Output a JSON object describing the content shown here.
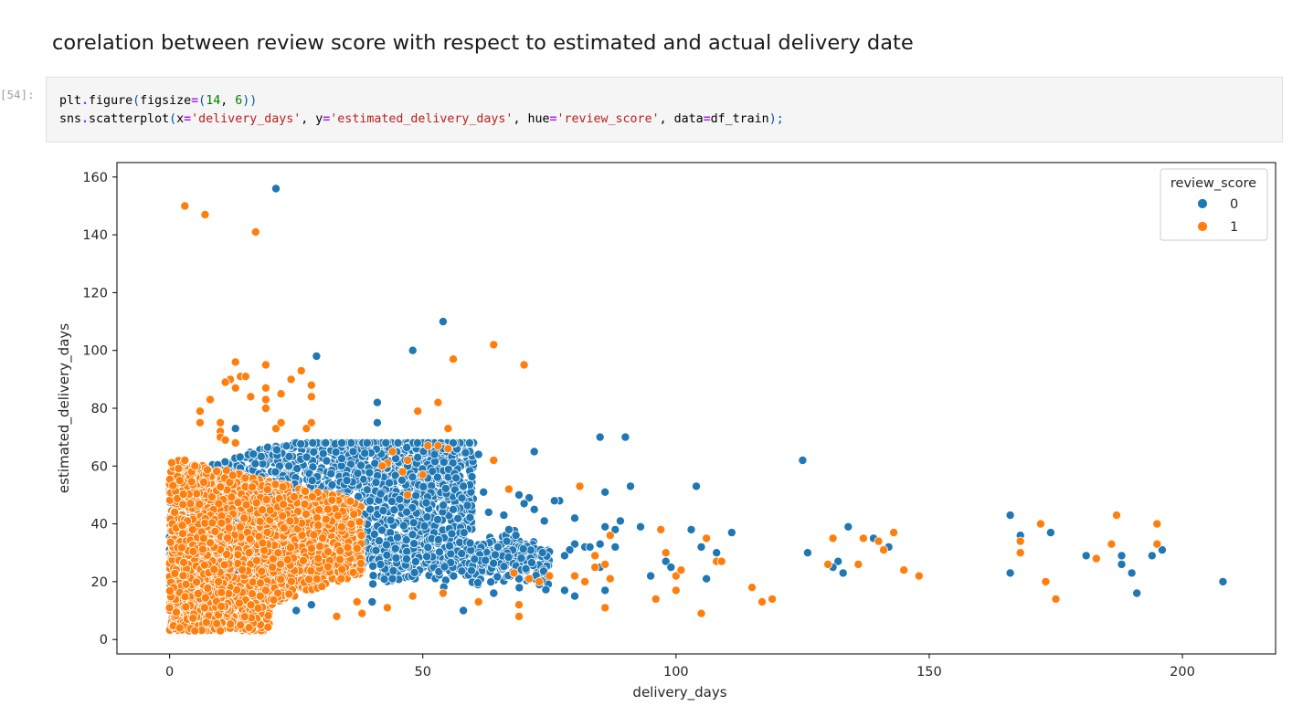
{
  "heading": "corelation between review score with respect to estimated and actual delivery date",
  "cell": {
    "prompt": "[54]:",
    "code_lines": [
      [
        {
          "t": "plt",
          "c": "c-name"
        },
        {
          "t": ".",
          "c": "c-op"
        },
        {
          "t": "figure",
          "c": "c-name"
        },
        {
          "t": "(",
          "c": "c-punc"
        },
        {
          "t": "figsize",
          "c": "c-name"
        },
        {
          "t": "=",
          "c": "c-op"
        },
        {
          "t": "(",
          "c": "c-punc"
        },
        {
          "t": "14",
          "c": "c-num"
        },
        {
          "t": ", ",
          "c": "c-name"
        },
        {
          "t": "6",
          "c": "c-num"
        },
        {
          "t": "))",
          "c": "c-punc"
        }
      ],
      [
        {
          "t": "sns",
          "c": "c-name"
        },
        {
          "t": ".",
          "c": "c-op"
        },
        {
          "t": "scatterplot",
          "c": "c-name"
        },
        {
          "t": "(",
          "c": "c-punc"
        },
        {
          "t": "x",
          "c": "c-name"
        },
        {
          "t": "=",
          "c": "c-op"
        },
        {
          "t": "'delivery_days'",
          "c": "c-str"
        },
        {
          "t": ", ",
          "c": "c-name"
        },
        {
          "t": "y",
          "c": "c-name"
        },
        {
          "t": "=",
          "c": "c-op"
        },
        {
          "t": "'estimated_delivery_days'",
          "c": "c-str"
        },
        {
          "t": ", ",
          "c": "c-name"
        },
        {
          "t": "hue",
          "c": "c-name"
        },
        {
          "t": "=",
          "c": "c-op"
        },
        {
          "t": "'review_score'",
          "c": "c-str"
        },
        {
          "t": ", ",
          "c": "c-name"
        },
        {
          "t": "data",
          "c": "c-name"
        },
        {
          "t": "=",
          "c": "c-op"
        },
        {
          "t": "df_train",
          "c": "c-name"
        },
        {
          "t": ");",
          "c": "c-punc"
        }
      ]
    ]
  },
  "chart_data": {
    "type": "scatter",
    "xlabel": "delivery_days",
    "ylabel": "estimated_delivery_days",
    "xlim": [
      -10.4,
      218.4
    ],
    "ylim": [
      -5,
      165
    ],
    "xticks": [
      0,
      50,
      100,
      150,
      200
    ],
    "yticks": [
      0,
      20,
      40,
      60,
      80,
      100,
      120,
      140,
      160
    ],
    "grid": false,
    "legend": {
      "title": "review_score",
      "placement": "top-right"
    },
    "series": [
      {
        "name": "0",
        "color": "#1f77b4",
        "points": [
          [
            21,
            156
          ],
          [
            54,
            110
          ],
          [
            48,
            100
          ],
          [
            29,
            98
          ],
          [
            41,
            82
          ],
          [
            41,
            75
          ],
          [
            13,
            73
          ],
          [
            85,
            70
          ],
          [
            90,
            70
          ],
          [
            39,
            68
          ],
          [
            34,
            68
          ],
          [
            54,
            66
          ],
          [
            72,
            65
          ],
          [
            61,
            64
          ],
          [
            49,
            63
          ],
          [
            125,
            62
          ],
          [
            47,
            60
          ],
          [
            35,
            55
          ],
          [
            91,
            53
          ],
          [
            104,
            53
          ],
          [
            58,
            53
          ],
          [
            62,
            51
          ],
          [
            86,
            51
          ],
          [
            69,
            50
          ],
          [
            71,
            49
          ],
          [
            77,
            48
          ],
          [
            76,
            48
          ],
          [
            70,
            47
          ],
          [
            72,
            45
          ],
          [
            56,
            45
          ],
          [
            80,
            42
          ],
          [
            66,
            43
          ],
          [
            63,
            44
          ],
          [
            89,
            41
          ],
          [
            74,
            41
          ],
          [
            86,
            39
          ],
          [
            134,
            39
          ],
          [
            93,
            39
          ],
          [
            103,
            38
          ],
          [
            111,
            37
          ],
          [
            88,
            38
          ],
          [
            67,
            38
          ],
          [
            166,
            43
          ],
          [
            174,
            37
          ],
          [
            168,
            36
          ],
          [
            139,
            35
          ],
          [
            80,
            33
          ],
          [
            85,
            33
          ],
          [
            88,
            32
          ],
          [
            82,
            32
          ],
          [
            83,
            32
          ],
          [
            79,
            31
          ],
          [
            105,
            32
          ],
          [
            142,
            32
          ],
          [
            126,
            30
          ],
          [
            108,
            30
          ],
          [
            196,
            31
          ],
          [
            78,
            29
          ],
          [
            98,
            27
          ],
          [
            132,
            27
          ],
          [
            181,
            29
          ],
          [
            188,
            29
          ],
          [
            194,
            29
          ],
          [
            99,
            25
          ],
          [
            131,
            25
          ],
          [
            85,
            25
          ],
          [
            188,
            26
          ],
          [
            190,
            23
          ],
          [
            166,
            23
          ],
          [
            133,
            23
          ],
          [
            106,
            21
          ],
          [
            95,
            22
          ],
          [
            78,
            17
          ],
          [
            80,
            15
          ],
          [
            86,
            17
          ],
          [
            73,
            19
          ],
          [
            69,
            21
          ],
          [
            64,
            16
          ],
          [
            58,
            10
          ],
          [
            191,
            16
          ],
          [
            208,
            20
          ],
          [
            117,
            13
          ],
          [
            44,
            21
          ],
          [
            28,
            12
          ],
          [
            25,
            10
          ],
          [
            17,
            4
          ],
          [
            40,
            13
          ],
          [
            12,
            6
          ]
        ]
      },
      {
        "name": "1",
        "color": "#ff7f0e",
        "points": [
          [
            3,
            150
          ],
          [
            7,
            147
          ],
          [
            17,
            141
          ],
          [
            64,
            102
          ],
          [
            56,
            97
          ],
          [
            70,
            95
          ],
          [
            13,
            96
          ],
          [
            19,
            95
          ],
          [
            26,
            93
          ],
          [
            14,
            91
          ],
          [
            15,
            91
          ],
          [
            12,
            90
          ],
          [
            11,
            89
          ],
          [
            24,
            90
          ],
          [
            28,
            88
          ],
          [
            13,
            87
          ],
          [
            19,
            87
          ],
          [
            16,
            84
          ],
          [
            22,
            85
          ],
          [
            28,
            84
          ],
          [
            8,
            83
          ],
          [
            19,
            83
          ],
          [
            53,
            82
          ],
          [
            49,
            79
          ],
          [
            6,
            79
          ],
          [
            19,
            80
          ],
          [
            6,
            75
          ],
          [
            10,
            75
          ],
          [
            21,
            73
          ],
          [
            55,
            73
          ],
          [
            28,
            75
          ],
          [
            22,
            75
          ],
          [
            27,
            73
          ],
          [
            10,
            72
          ],
          [
            10,
            70
          ],
          [
            11,
            69
          ],
          [
            13,
            68
          ],
          [
            53,
            67
          ],
          [
            55,
            66
          ],
          [
            51,
            67
          ],
          [
            44,
            65
          ],
          [
            47,
            62
          ],
          [
            64,
            62
          ],
          [
            43,
            61
          ],
          [
            42,
            60
          ],
          [
            46,
            58
          ],
          [
            50,
            57
          ],
          [
            81,
            53
          ],
          [
            67,
            52
          ],
          [
            47,
            50
          ],
          [
            3,
            62
          ],
          [
            5,
            60
          ],
          [
            2,
            55
          ],
          [
            1,
            44
          ],
          [
            97,
            38
          ],
          [
            87,
            36
          ],
          [
            131,
            35
          ],
          [
            137,
            35
          ],
          [
            143,
            37
          ],
          [
            140,
            34
          ],
          [
            168,
            34
          ],
          [
            172,
            40
          ],
          [
            187,
            43
          ],
          [
            195,
            40
          ],
          [
            106,
            35
          ],
          [
            195,
            33
          ],
          [
            186,
            33
          ],
          [
            183,
            28
          ],
          [
            168,
            30
          ],
          [
            141,
            31
          ],
          [
            136,
            26
          ],
          [
            130,
            26
          ],
          [
            145,
            24
          ],
          [
            148,
            22
          ],
          [
            108,
            27
          ],
          [
            109,
            27
          ],
          [
            100,
            22
          ],
          [
            101,
            24
          ],
          [
            98,
            30
          ],
          [
            86,
            26
          ],
          [
            84,
            29
          ],
          [
            84,
            25
          ],
          [
            80,
            22
          ],
          [
            75,
            22
          ],
          [
            73,
            20
          ],
          [
            71,
            21
          ],
          [
            68,
            23
          ],
          [
            87,
            21
          ],
          [
            82,
            20
          ],
          [
            100,
            17
          ],
          [
            96,
            14
          ],
          [
            115,
            18
          ],
          [
            117,
            13
          ],
          [
            119,
            14
          ],
          [
            105,
            9
          ],
          [
            173,
            20
          ],
          [
            175,
            14
          ],
          [
            86,
            11
          ],
          [
            69,
            12
          ],
          [
            69,
            8
          ],
          [
            61,
            13
          ],
          [
            54,
            16
          ],
          [
            48,
            15
          ],
          [
            43,
            11
          ],
          [
            38,
            9
          ],
          [
            37,
            13
          ],
          [
            33,
            8
          ],
          [
            0,
            11
          ],
          [
            2,
            4
          ],
          [
            5,
            3
          ],
          [
            10,
            3
          ],
          [
            14,
            5
          ]
        ]
      }
    ]
  }
}
